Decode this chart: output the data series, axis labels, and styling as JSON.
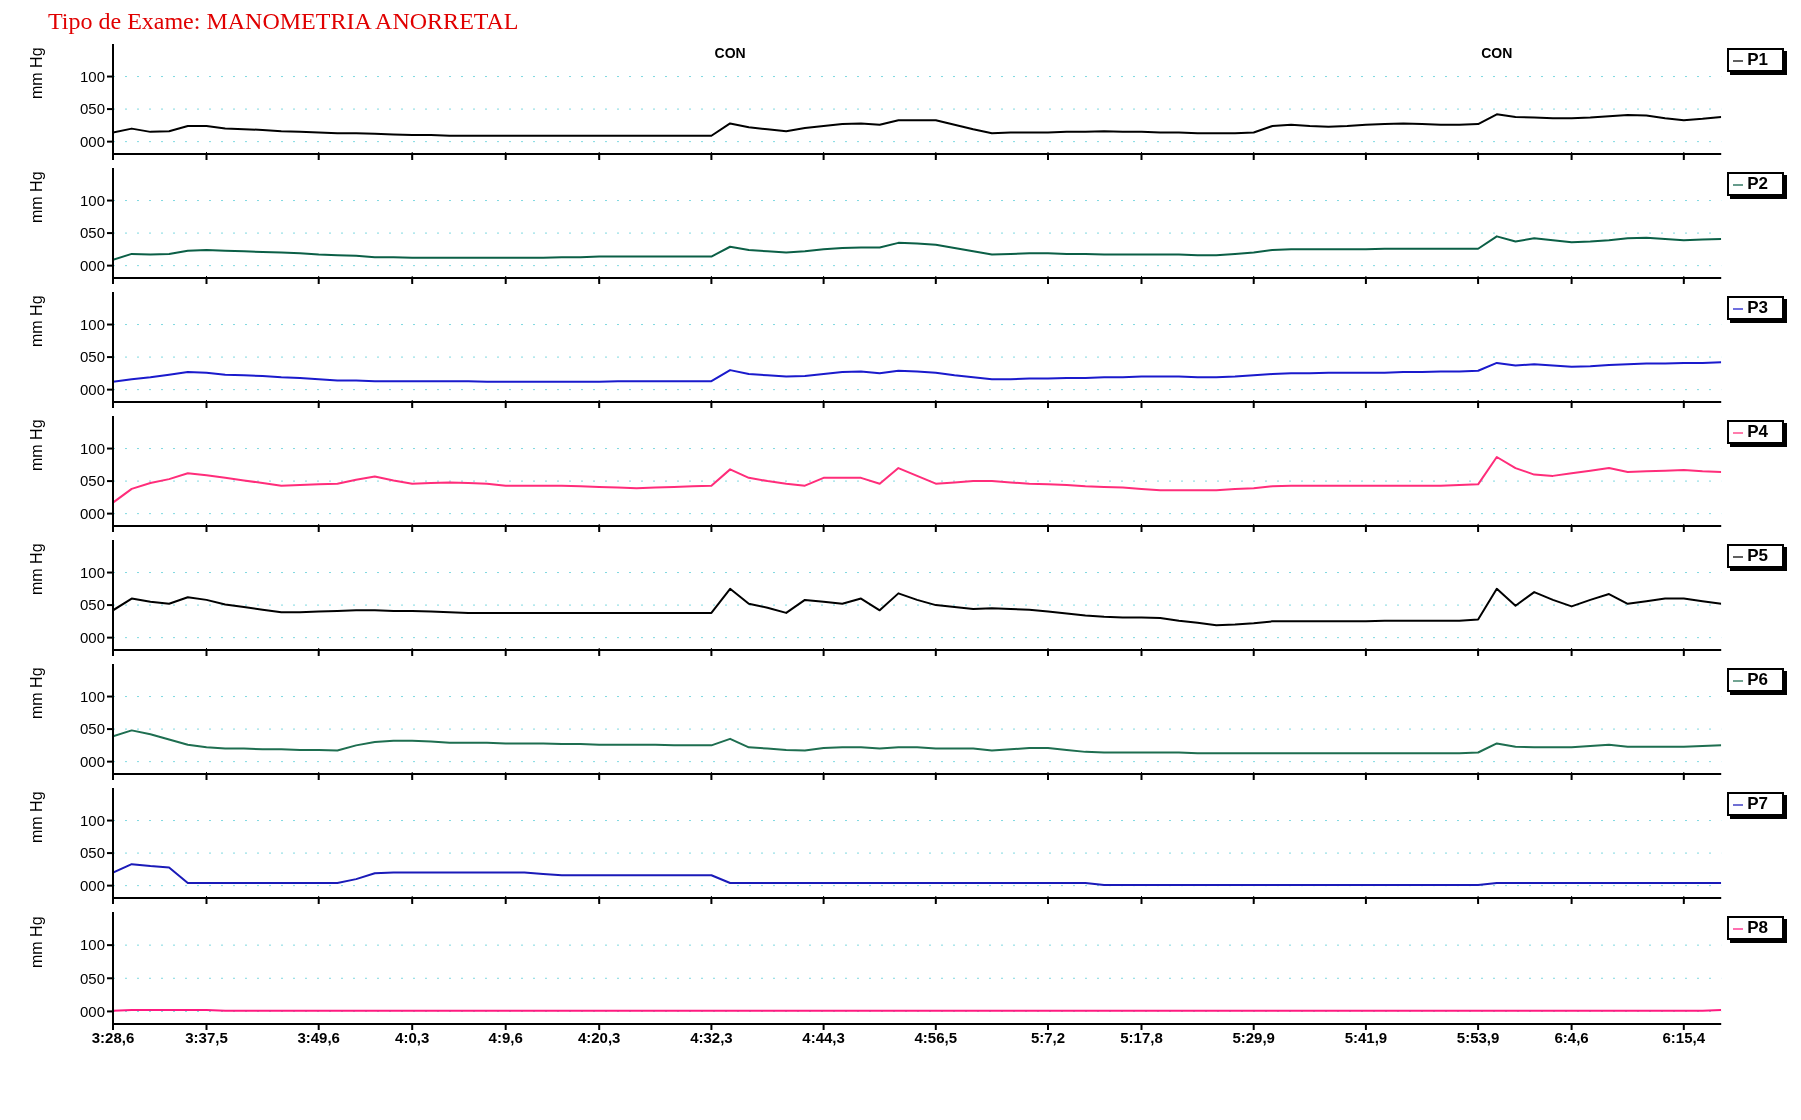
{
  "chart_data": [
    {
      "type": "line",
      "title": "Tipo de Exame: MANOMETRIA ANORRETAL",
      "ylabel": "mm Hg",
      "ylim": [
        -19,
        150
      ],
      "yticks": [
        {
          "value": 0,
          "label": "000"
        },
        {
          "value": 50,
          "label": "050"
        },
        {
          "value": 100,
          "label": "100"
        }
      ],
      "grid": "y",
      "legend": "top right",
      "tick_labels": "y",
      "annotations": [
        "CON",
        "CON"
      ],
      "series": [
        {
          "name": "P1",
          "color": "#000000",
          "values": [
            14,
            20,
            15,
            16,
            24,
            24,
            20,
            19,
            18,
            16,
            15,
            14,
            13,
            13,
            12,
            11,
            10,
            10,
            9,
            9,
            9,
            9,
            9,
            9,
            9,
            9,
            9,
            9,
            9,
            9,
            9,
            9,
            9,
            28,
            22,
            19,
            16,
            21,
            24,
            27,
            28,
            26,
            33,
            33,
            33,
            26,
            19,
            13,
            14,
            14,
            14,
            15,
            15,
            16,
            15,
            15,
            14,
            14,
            13,
            13,
            13,
            14,
            24,
            26,
            24,
            23,
            24,
            26,
            27,
            28,
            27,
            26,
            26,
            27,
            42,
            38,
            37,
            36,
            36,
            37,
            39,
            41,
            40,
            36,
            33,
            35,
            38
          ]
        }
      ]
    },
    {
      "type": "line",
      "ylabel": "mm Hg",
      "ylim": [
        -19,
        150
      ],
      "yticks": [
        {
          "value": 0,
          "label": "000"
        },
        {
          "value": 50,
          "label": "050"
        },
        {
          "value": 100,
          "label": "100"
        }
      ],
      "grid": "y",
      "legend": "top right",
      "tick_labels": "y",
      "series": [
        {
          "name": "P2",
          "color": "#0b5f46",
          "values": [
            9,
            18,
            17,
            18,
            23,
            24,
            23,
            22,
            21,
            20,
            19,
            17,
            16,
            15,
            13,
            13,
            12,
            12,
            12,
            12,
            12,
            12,
            12,
            12,
            13,
            13,
            14,
            14,
            14,
            14,
            14,
            14,
            14,
            29,
            24,
            22,
            20,
            22,
            25,
            27,
            28,
            28,
            35,
            34,
            32,
            27,
            22,
            17,
            18,
            19,
            19,
            18,
            18,
            17,
            17,
            17,
            17,
            17,
            16,
            16,
            18,
            20,
            24,
            25,
            25,
            25,
            25,
            25,
            26,
            26,
            26,
            26,
            26,
            26,
            45,
            37,
            42,
            39,
            36,
            37,
            39,
            42,
            43,
            41,
            39,
            40,
            41
          ]
        }
      ]
    },
    {
      "type": "line",
      "ylabel": "mm Hg",
      "ylim": [
        -19,
        150
      ],
      "yticks": [
        {
          "value": 0,
          "label": "000"
        },
        {
          "value": 50,
          "label": "050"
        },
        {
          "value": 100,
          "label": "100"
        }
      ],
      "grid": "y",
      "legend": "top right",
      "tick_labels": "y",
      "series": [
        {
          "name": "P3",
          "color": "#1a1acc",
          "values": [
            12,
            16,
            19,
            23,
            27,
            26,
            23,
            22,
            21,
            19,
            18,
            16,
            14,
            14,
            13,
            13,
            13,
            13,
            13,
            13,
            12,
            12,
            12,
            12,
            12,
            12,
            12,
            13,
            13,
            13,
            13,
            13,
            13,
            30,
            24,
            22,
            20,
            21,
            24,
            27,
            28,
            25,
            29,
            28,
            26,
            22,
            19,
            16,
            16,
            17,
            17,
            18,
            18,
            19,
            19,
            20,
            20,
            20,
            19,
            19,
            20,
            22,
            24,
            25,
            25,
            26,
            26,
            26,
            26,
            27,
            27,
            28,
            28,
            29,
            41,
            37,
            39,
            37,
            35,
            36,
            38,
            39,
            40,
            40,
            41,
            41,
            42
          ]
        }
      ]
    },
    {
      "type": "line",
      "ylabel": "mm Hg",
      "ylim": [
        -19,
        150
      ],
      "yticks": [
        {
          "value": 0,
          "label": "000"
        },
        {
          "value": 50,
          "label": "050"
        },
        {
          "value": 100,
          "label": "100"
        }
      ],
      "grid": "y",
      "legend": "top right",
      "tick_labels": "y",
      "series": [
        {
          "name": "P4",
          "color": "#ff2d7a",
          "values": [
            17,
            38,
            47,
            53,
            62,
            59,
            55,
            51,
            47,
            43,
            44,
            45,
            46,
            52,
            57,
            51,
            46,
            47,
            48,
            47,
            46,
            43,
            43,
            43,
            43,
            42,
            41,
            40,
            39,
            40,
            41,
            42,
            43,
            68,
            55,
            50,
            46,
            43,
            55,
            55,
            55,
            46,
            70,
            58,
            46,
            48,
            50,
            50,
            48,
            46,
            45,
            44,
            42,
            41,
            40,
            38,
            36,
            36,
            36,
            36,
            38,
            39,
            42,
            43,
            43,
            43,
            43,
            43,
            43,
            43,
            43,
            43,
            44,
            45,
            87,
            70,
            60,
            58,
            62,
            66,
            70,
            64,
            65,
            66,
            67,
            65,
            64
          ]
        }
      ]
    },
    {
      "type": "line",
      "ylabel": "mm Hg",
      "ylim": [
        -19,
        150
      ],
      "yticks": [
        {
          "value": 0,
          "label": "000"
        },
        {
          "value": 50,
          "label": "050"
        },
        {
          "value": 100,
          "label": "100"
        }
      ],
      "grid": "y",
      "legend": "top right",
      "tick_labels": "y",
      "series": [
        {
          "name": "P5",
          "color": "#000000",
          "values": [
            42,
            60,
            55,
            52,
            62,
            58,
            51,
            47,
            43,
            39,
            39,
            40,
            41,
            42,
            42,
            41,
            41,
            40,
            39,
            38,
            38,
            38,
            38,
            38,
            38,
            38,
            38,
            38,
            38,
            38,
            38,
            38,
            38,
            75,
            52,
            46,
            38,
            58,
            55,
            52,
            60,
            42,
            68,
            58,
            50,
            47,
            44,
            45,
            44,
            43,
            40,
            37,
            34,
            32,
            31,
            31,
            30,
            26,
            23,
            19,
            20,
            22,
            25,
            25,
            25,
            25,
            25,
            25,
            26,
            26,
            26,
            26,
            26,
            28,
            75,
            49,
            70,
            58,
            48,
            58,
            67,
            52,
            56,
            60,
            60,
            56,
            52
          ]
        }
      ]
    },
    {
      "type": "line",
      "ylabel": "mm Hg",
      "ylim": [
        -19,
        150
      ],
      "yticks": [
        {
          "value": 0,
          "label": "000"
        },
        {
          "value": 50,
          "label": "050"
        },
        {
          "value": 100,
          "label": "100"
        }
      ],
      "grid": "y",
      "legend": "top right",
      "tick_labels": "y",
      "series": [
        {
          "name": "P6",
          "color": "#1e6e50",
          "values": [
            39,
            48,
            42,
            34,
            26,
            22,
            20,
            20,
            19,
            19,
            18,
            18,
            17,
            25,
            30,
            32,
            32,
            31,
            29,
            29,
            29,
            28,
            28,
            28,
            27,
            27,
            26,
            26,
            26,
            26,
            25,
            25,
            25,
            35,
            22,
            20,
            18,
            17,
            21,
            22,
            22,
            20,
            22,
            22,
            20,
            20,
            20,
            17,
            19,
            21,
            21,
            18,
            15,
            14,
            14,
            14,
            14,
            14,
            13,
            13,
            13,
            13,
            13,
            13,
            13,
            13,
            13,
            13,
            13,
            13,
            13,
            13,
            13,
            14,
            28,
            23,
            22,
            22,
            22,
            24,
            26,
            23,
            23,
            23,
            23,
            24,
            25
          ]
        }
      ]
    },
    {
      "type": "line",
      "ylabel": "mm Hg",
      "ylim": [
        -19,
        150
      ],
      "yticks": [
        {
          "value": 0,
          "label": "000"
        },
        {
          "value": 50,
          "label": "050"
        },
        {
          "value": 100,
          "label": "100"
        }
      ],
      "grid": "y",
      "legend": "top right",
      "tick_labels": "y",
      "series": [
        {
          "name": "P7",
          "color": "#1a1ab8",
          "values": [
            20,
            33,
            30,
            28,
            4,
            4,
            4,
            4,
            4,
            4,
            4,
            4,
            4,
            10,
            19,
            20,
            20,
            20,
            20,
            20,
            20,
            20,
            20,
            18,
            16,
            16,
            16,
            16,
            16,
            16,
            16,
            16,
            16,
            4,
            4,
            4,
            4,
            4,
            4,
            4,
            4,
            4,
            4,
            4,
            4,
            4,
            4,
            4,
            4,
            4,
            4,
            4,
            4,
            1,
            1,
            1,
            1,
            1,
            1,
            1,
            1,
            1,
            1,
            1,
            1,
            1,
            1,
            1,
            1,
            1,
            1,
            1,
            1,
            1,
            4,
            4,
            4,
            4,
            4,
            4,
            4,
            4,
            4,
            4,
            4,
            4,
            4
          ]
        }
      ]
    },
    {
      "type": "line",
      "ylabel": "mm Hg",
      "ylim": [
        -19,
        150
      ],
      "yticks": [
        {
          "value": 0,
          "label": "000"
        },
        {
          "value": 50,
          "label": "050"
        },
        {
          "value": 100,
          "label": "100"
        }
      ],
      "grid": "y",
      "legend": "top right",
      "categories": [
        "3:28,6",
        null,
        null,
        null,
        null,
        "3:37,5",
        null,
        null,
        null,
        null,
        null,
        "3:49,6",
        null,
        null,
        null,
        null,
        "4:0,3",
        null,
        null,
        null,
        null,
        "4:9,6",
        null,
        null,
        null,
        null,
        "4:20,3",
        null,
        null,
        null,
        null,
        null,
        "4:32,3",
        null,
        null,
        null,
        null,
        null,
        "4:44,3",
        null,
        null,
        null,
        null,
        null,
        "4:56,5",
        null,
        null,
        null,
        null,
        null,
        "5:7,2",
        null,
        null,
        null,
        null,
        "5:17,8",
        null,
        null,
        null,
        null,
        null,
        "5:29,9",
        null,
        null,
        null,
        null,
        null,
        "5:41,9",
        null,
        null,
        null,
        null,
        null,
        "5:53,9",
        null,
        null,
        null,
        null,
        "6:4,6",
        null,
        null,
        null,
        null,
        null,
        "6:15,4",
        null,
        null
      ],
      "series": [
        {
          "name": "P8",
          "color": "#ff1a80",
          "values": [
            1,
            2,
            2,
            2,
            2,
            2,
            1,
            1,
            1,
            1,
            1,
            1,
            1,
            1,
            1,
            1,
            1,
            1,
            1,
            1,
            1,
            1,
            1,
            1,
            1,
            1,
            1,
            1,
            1,
            1,
            1,
            1,
            1,
            1,
            1,
            1,
            1,
            1,
            1,
            1,
            1,
            1,
            1,
            1,
            1,
            1,
            1,
            1,
            1,
            1,
            1,
            1,
            1,
            1,
            1,
            1,
            1,
            1,
            1,
            1,
            1,
            1,
            1,
            1,
            1,
            1,
            1,
            1,
            1,
            1,
            1,
            1,
            1,
            1,
            1,
            1,
            1,
            1,
            1,
            1,
            1,
            1,
            1,
            1,
            1,
            1,
            2
          ]
        }
      ]
    }
  ]
}
